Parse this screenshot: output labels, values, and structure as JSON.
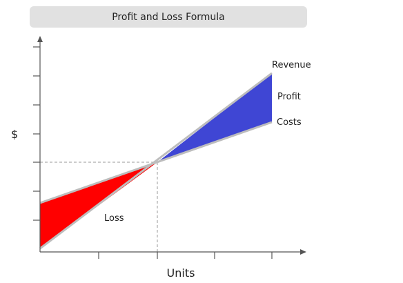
{
  "title": "Profit and Loss Formula",
  "axes": {
    "y_label": "$",
    "x_label": "Units"
  },
  "labels": {
    "revenue": "Revenue",
    "profit": "Profit",
    "costs": "Costs",
    "loss": "Loss"
  },
  "colors": {
    "profit_fill": "#3f46d4",
    "loss_fill": "#ff0000",
    "line": "#bdbdbd",
    "axis": "#555555",
    "title_background": "#e1e1e1"
  }
}
